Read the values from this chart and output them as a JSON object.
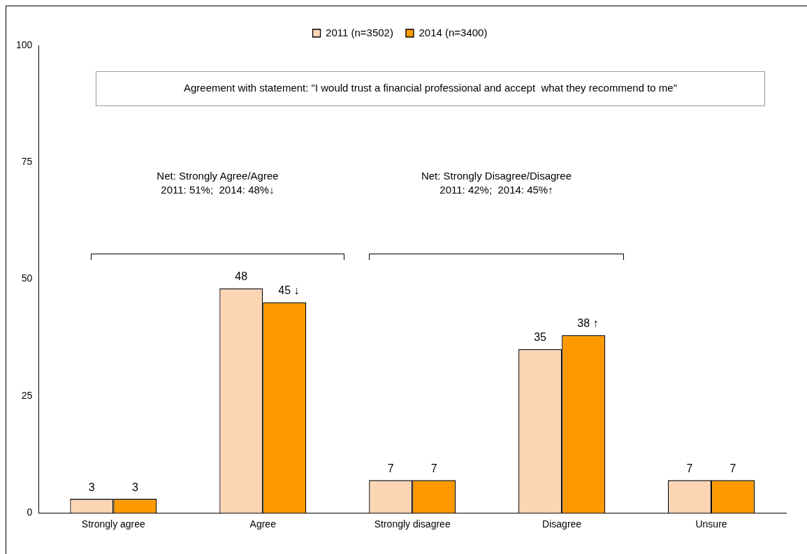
{
  "chart_data": {
    "type": "bar",
    "categories": [
      "Strongly agree",
      "Agree",
      "Strongly disagree",
      "Disagree",
      "Unsure"
    ],
    "series": [
      {
        "name": "2011 (n=3502)",
        "color": "#fcd5b5",
        "values": [
          3,
          48,
          7,
          35,
          7
        ],
        "value_labels": [
          "3",
          "48",
          "7",
          "35",
          "7"
        ]
      },
      {
        "name": "2014 (n=3400)",
        "color": "#ff9900",
        "values": [
          3,
          45,
          7,
          38,
          7
        ],
        "value_labels": [
          "3",
          "45 ↓",
          "7",
          "38 ↑",
          "7"
        ]
      }
    ],
    "ylim": [
      0,
      100
    ],
    "yticks": [
      0,
      25,
      50,
      75,
      100
    ],
    "grid": false,
    "legend": "top",
    "annotations": [
      "Agreement with statement: \"I would trust a financial professional and accept  what they recommend to me\"",
      "Net: Strongly Agree/Agree\n2011: 51%;  2014: 48%↓",
      "Net: Strongly Disagree/Disagree\n2011: 42%;  2014: 45%↑"
    ]
  }
}
